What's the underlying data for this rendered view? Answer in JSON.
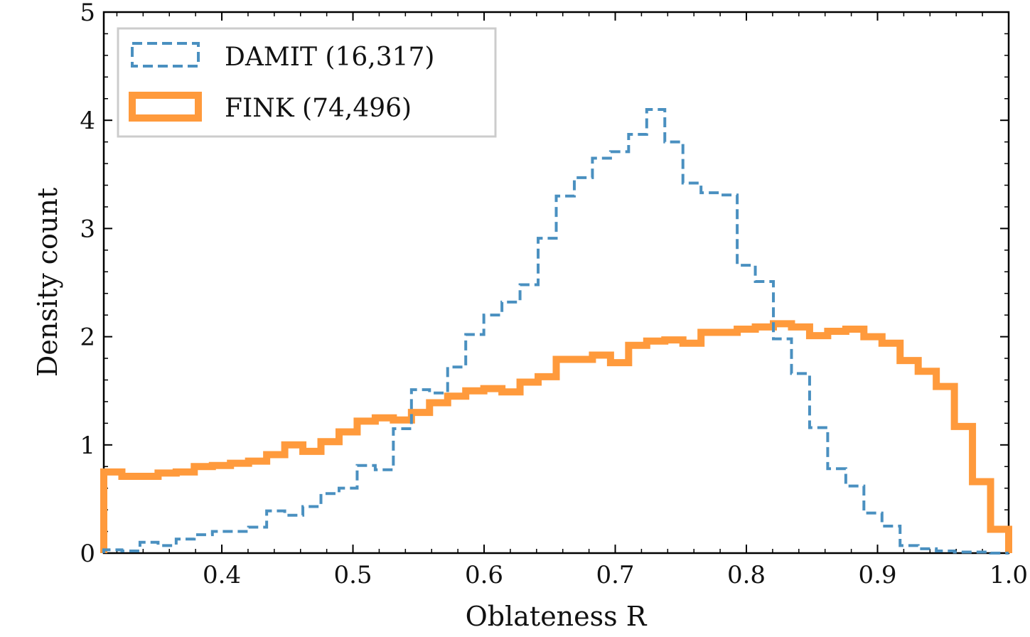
{
  "chart_data": {
    "type": "histogram",
    "title": "",
    "xlabel": "Oblateness R",
    "ylabel": "Density count",
    "xlim": [
      0.31,
      1.0
    ],
    "ylim": [
      0,
      5
    ],
    "x_ticks": [
      "0.4",
      "0.5",
      "0.6",
      "0.7",
      "0.8",
      "0.9",
      "1.0"
    ],
    "y_ticks": [
      "0",
      "1",
      "2",
      "3",
      "4",
      "5"
    ],
    "x_tick_values": [
      0.4,
      0.5,
      0.6,
      0.7,
      0.8,
      0.9,
      1.0
    ],
    "y_tick_values": [
      0,
      1,
      2,
      3,
      4,
      5
    ],
    "legend_position": "top-left",
    "grid": false,
    "series": [
      {
        "name": "DAMIT (16,317)",
        "style": "dashed",
        "color": "#4a90c0",
        "edges": [
          0.31,
          0.3238,
          0.3376,
          0.3514,
          0.3652,
          0.379,
          0.3928,
          0.4066,
          0.4204,
          0.4342,
          0.448,
          0.4618,
          0.4756,
          0.4894,
          0.5032,
          0.517,
          0.5308,
          0.5446,
          0.5584,
          0.5722,
          0.586,
          0.5998,
          0.6136,
          0.6274,
          0.6412,
          0.655,
          0.6688,
          0.6826,
          0.6964,
          0.7102,
          0.724,
          0.7378,
          0.7516,
          0.7654,
          0.7792,
          0.793,
          0.8068,
          0.8206,
          0.8344,
          0.8482,
          0.862,
          0.8758,
          0.8896,
          0.9034,
          0.9172,
          0.931,
          0.9448,
          0.9586,
          0.9724,
          0.9862,
          1.0
        ],
        "values": [
          0.03,
          0.02,
          0.1,
          0.07,
          0.13,
          0.17,
          0.2,
          0.2,
          0.24,
          0.39,
          0.35,
          0.43,
          0.55,
          0.6,
          0.81,
          0.77,
          1.15,
          1.51,
          1.48,
          1.72,
          2.02,
          2.2,
          2.32,
          2.48,
          2.91,
          3.3,
          3.47,
          3.65,
          3.71,
          3.87,
          4.1,
          3.8,
          3.42,
          3.33,
          3.31,
          2.66,
          2.51,
          1.98,
          1.66,
          1.16,
          0.78,
          0.62,
          0.37,
          0.25,
          0.07,
          0.04,
          0.02,
          0.01,
          0.01,
          0.0
        ]
      },
      {
        "name": "FINK (74,496)",
        "style": "solid",
        "color": "#ff9a3c",
        "edges": [
          0.31,
          0.3238,
          0.3376,
          0.3514,
          0.3652,
          0.379,
          0.3928,
          0.4066,
          0.4204,
          0.4342,
          0.448,
          0.4618,
          0.4756,
          0.4894,
          0.5032,
          0.517,
          0.5308,
          0.5446,
          0.5584,
          0.5722,
          0.586,
          0.5998,
          0.6136,
          0.6274,
          0.6412,
          0.655,
          0.6688,
          0.6826,
          0.6964,
          0.7102,
          0.724,
          0.7378,
          0.7516,
          0.7654,
          0.7792,
          0.793,
          0.8068,
          0.8206,
          0.8344,
          0.8482,
          0.862,
          0.8758,
          0.8896,
          0.9034,
          0.9172,
          0.931,
          0.9448,
          0.9586,
          0.9724,
          0.9862,
          1.0
        ],
        "values": [
          0.75,
          0.71,
          0.71,
          0.74,
          0.75,
          0.8,
          0.81,
          0.83,
          0.85,
          0.91,
          1.0,
          0.94,
          1.03,
          1.12,
          1.22,
          1.25,
          1.23,
          1.3,
          1.39,
          1.45,
          1.5,
          1.52,
          1.49,
          1.58,
          1.63,
          1.79,
          1.79,
          1.83,
          1.76,
          1.92,
          1.96,
          1.97,
          1.94,
          2.04,
          2.04,
          2.07,
          2.09,
          2.12,
          2.09,
          2.01,
          2.05,
          2.07,
          2.0,
          1.94,
          1.78,
          1.68,
          1.54,
          1.17,
          0.66,
          0.22
        ]
      }
    ]
  }
}
